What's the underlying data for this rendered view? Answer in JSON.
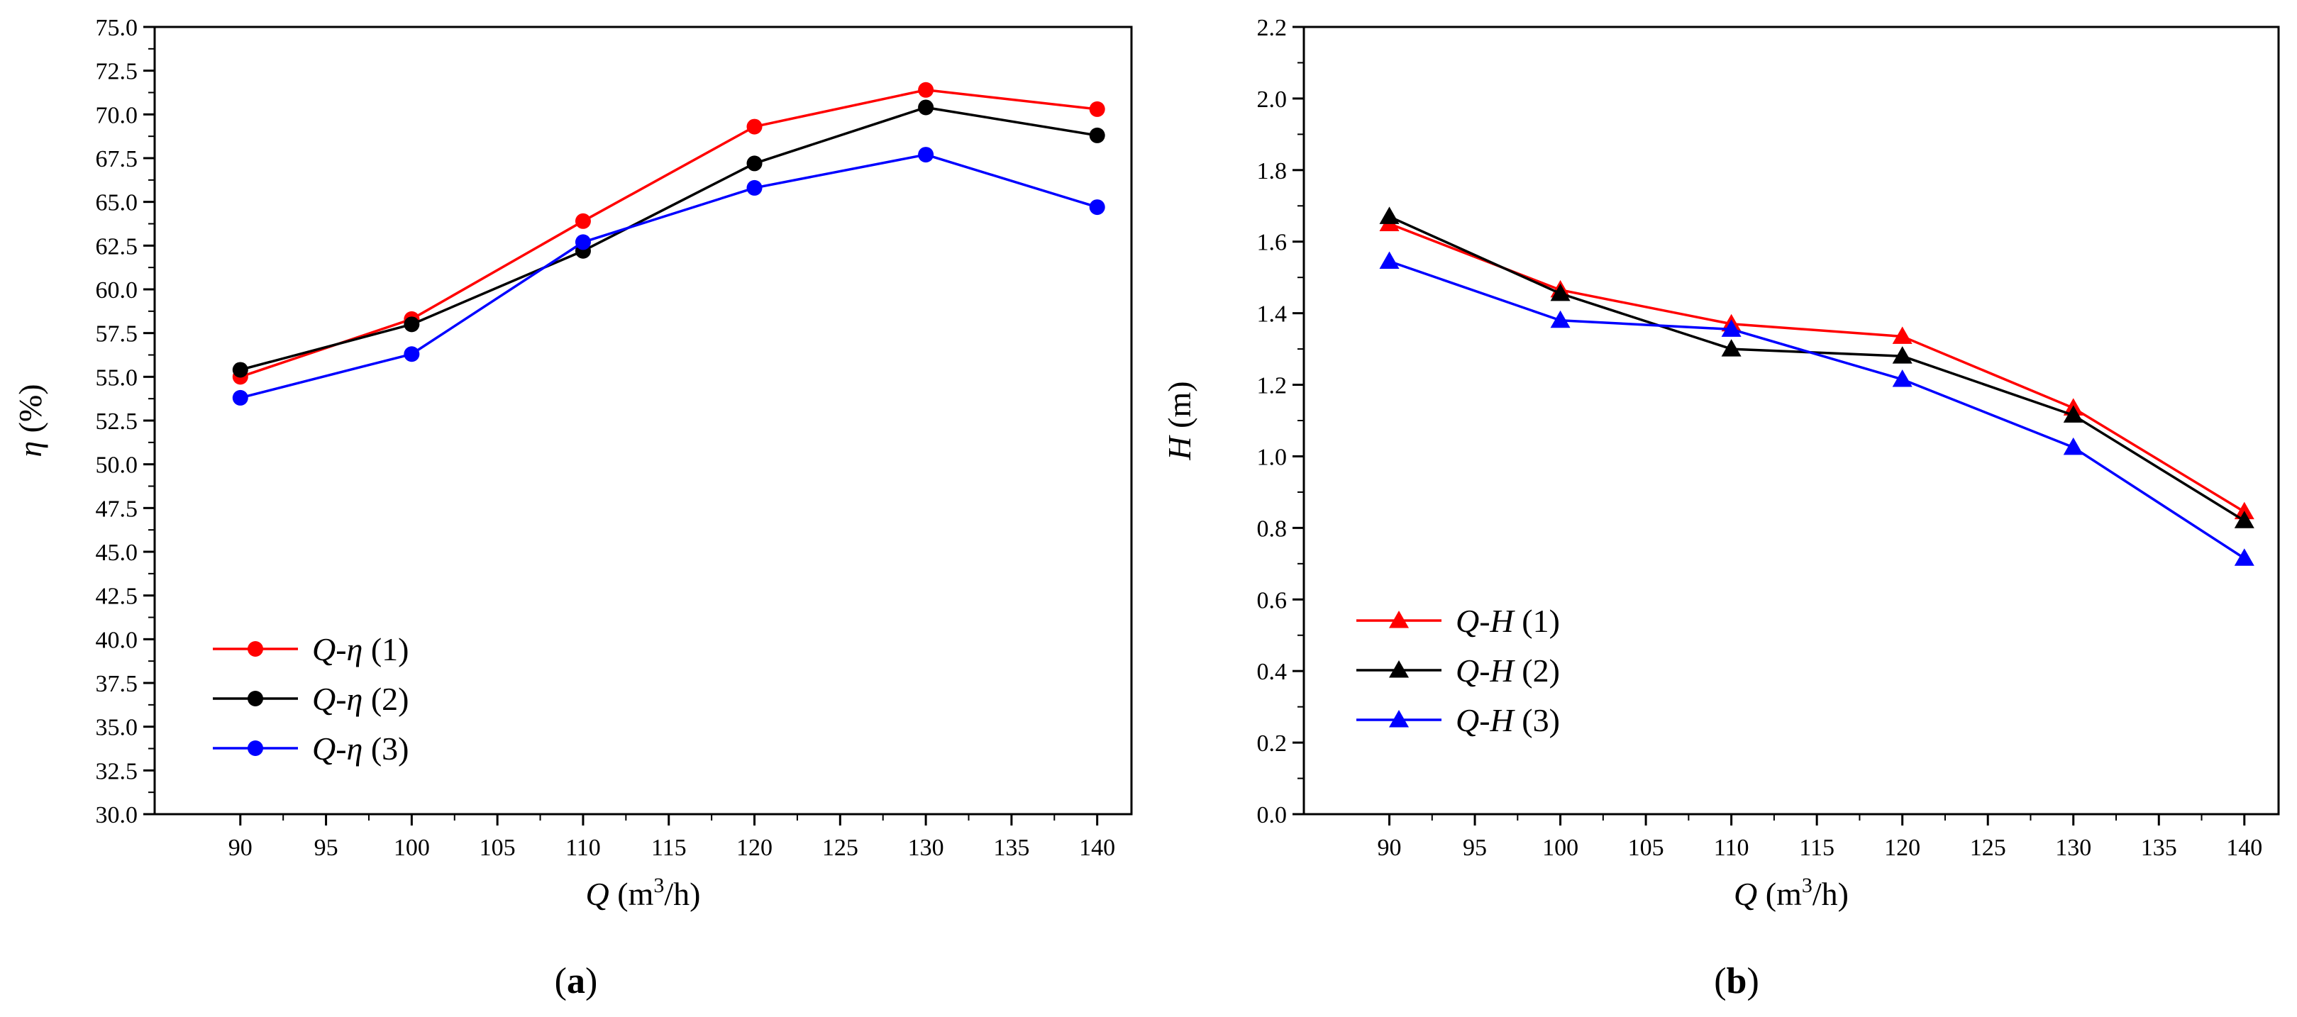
{
  "colors": {
    "series_1": "#ff0000",
    "series_2": "#000000",
    "series_3": "#0000ff",
    "axis": "#000000",
    "background": "#ffffff"
  },
  "chart_data": [
    {
      "type": "line",
      "panel_label": {
        "pre": "(",
        "letter": "a",
        "post": ")"
      },
      "xlabel": {
        "symbol": "Q",
        "pre": " (m",
        "sup": "3",
        "post": "/h)"
      },
      "ylabel": {
        "symbol": "η",
        "unit": " (%)"
      },
      "xlim": [
        85,
        142
      ],
      "ylim": [
        30.0,
        75.0
      ],
      "xticks": [
        "90",
        "95",
        "100",
        "105",
        "110",
        "115",
        "120",
        "125",
        "130",
        "135",
        "140"
      ],
      "yticks": [
        "30.0",
        "32.5",
        "35.0",
        "37.5",
        "40.0",
        "42.5",
        "45.0",
        "47.5",
        "50.0",
        "52.5",
        "55.0",
        "57.5",
        "60.0",
        "62.5",
        "65.0",
        "67.5",
        "70.0",
        "72.5",
        "75.0"
      ],
      "marker": "circle",
      "grid": false,
      "legend_position": "bottom-left",
      "x": [
        90,
        100,
        110,
        120,
        130,
        140
      ],
      "series": [
        {
          "name": {
            "sym": "Q-η",
            "tag": " (1)"
          },
          "color_key": "series_1",
          "values": [
            55.0,
            58.3,
            63.9,
            69.3,
            71.4,
            70.3
          ]
        },
        {
          "name": {
            "sym": "Q-η",
            "tag": " (2)"
          },
          "color_key": "series_2",
          "values": [
            55.4,
            58.0,
            62.2,
            67.2,
            70.4,
            68.8
          ]
        },
        {
          "name": {
            "sym": "Q-η",
            "tag": " (3)"
          },
          "color_key": "series_3",
          "values": [
            53.8,
            56.3,
            62.7,
            65.8,
            67.7,
            64.7
          ]
        }
      ]
    },
    {
      "type": "line",
      "panel_label": {
        "pre": "(",
        "letter": "b",
        "post": ")"
      },
      "xlabel": {
        "symbol": "Q",
        "pre": " (m",
        "sup": "3",
        "post": "/h)"
      },
      "ylabel": {
        "symbol": "H",
        "unit": " (m)"
      },
      "xlim": [
        85,
        142
      ],
      "ylim": [
        0.0,
        2.2
      ],
      "xticks": [
        "90",
        "95",
        "100",
        "105",
        "110",
        "115",
        "120",
        "125",
        "130",
        "135",
        "140"
      ],
      "yticks": [
        "0.0",
        "0.2",
        "0.4",
        "0.6",
        "0.8",
        "1.0",
        "1.2",
        "1.4",
        "1.6",
        "1.8",
        "2.0",
        "2.2"
      ],
      "marker": "triangle",
      "grid": false,
      "legend_position": "bottom-left",
      "x": [
        90,
        100,
        110,
        120,
        130,
        140
      ],
      "series": [
        {
          "name": {
            "sym": "Q-H",
            "tag": " (1)"
          },
          "color_key": "series_1",
          "values": [
            1.65,
            1.465,
            1.37,
            1.335,
            1.135,
            0.845
          ]
        },
        {
          "name": {
            "sym": "Q-H",
            "tag": " (2)"
          },
          "color_key": "series_2",
          "values": [
            1.67,
            1.455,
            1.3,
            1.28,
            1.115,
            0.82
          ]
        },
        {
          "name": {
            "sym": "Q-H",
            "tag": " (3)"
          },
          "color_key": "series_3",
          "values": [
            1.545,
            1.38,
            1.355,
            1.215,
            1.025,
            0.715
          ]
        }
      ]
    }
  ]
}
